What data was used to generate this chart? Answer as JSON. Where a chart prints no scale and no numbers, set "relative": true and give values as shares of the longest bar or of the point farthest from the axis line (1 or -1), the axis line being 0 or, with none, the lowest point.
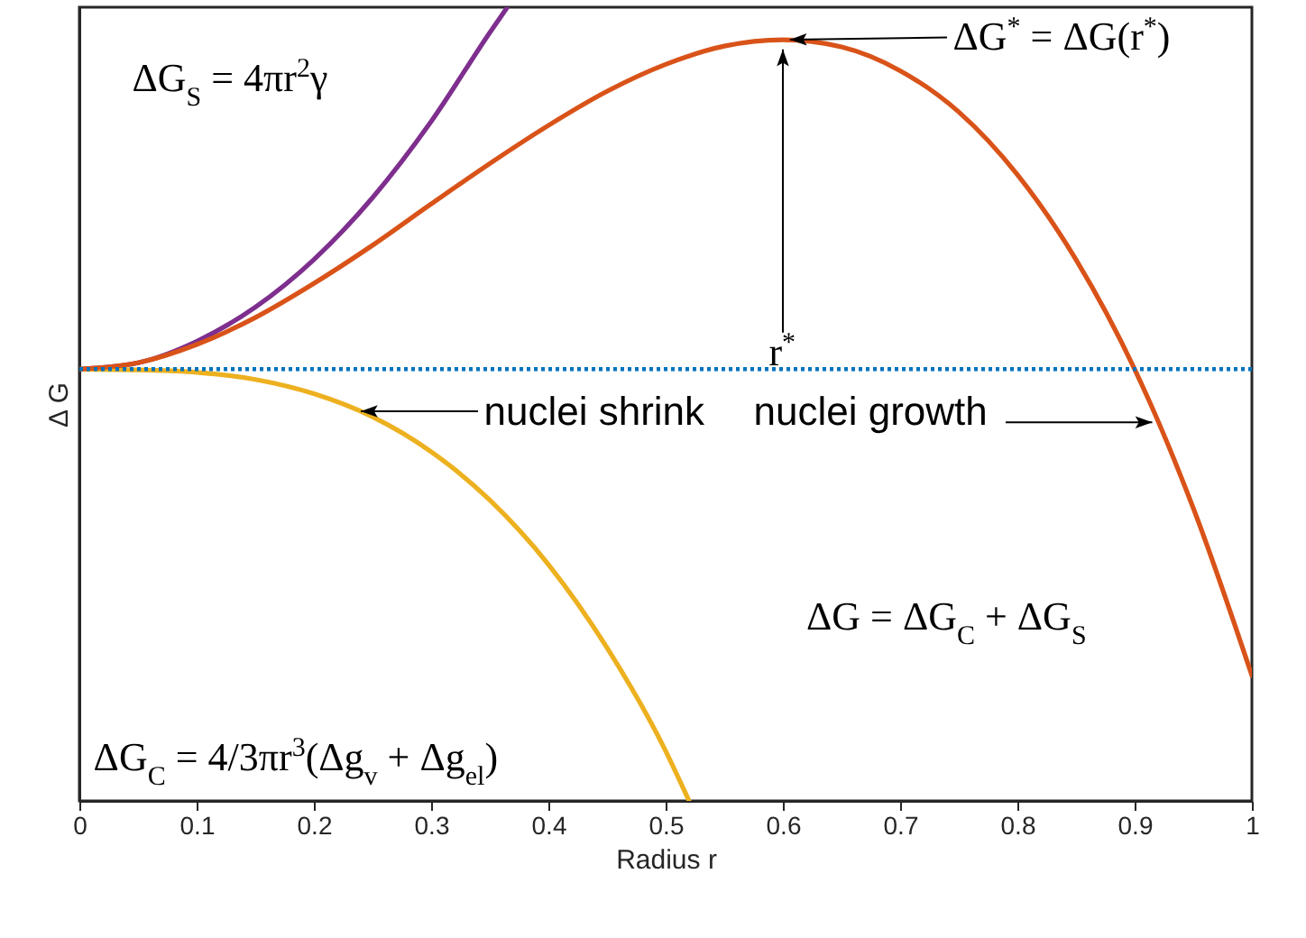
{
  "chart_data": {
    "type": "line",
    "relative": true,
    "xlabel": "Radius r",
    "ylabel": "Δ G",
    "xlim": [
      0,
      1
    ],
    "xticks": [
      0,
      0.1,
      0.2,
      0.3,
      0.4,
      0.5,
      0.6,
      0.7,
      0.8,
      0.9,
      1
    ],
    "series": [
      {
        "color": "#7e2f8e",
        "x": [
          0,
          0.05,
          0.1,
          0.15,
          0.2,
          0.25,
          0.3,
          0.35,
          0.365
        ],
        "values": [
          0.544,
          0.552,
          0.579,
          0.622,
          0.682,
          0.76,
          0.856,
          0.968,
          1
        ]
      },
      {
        "color": "#edb120",
        "x": [
          0,
          0.05,
          0.1,
          0.15,
          0.2,
          0.25,
          0.3,
          0.35,
          0.4,
          0.45,
          0.5,
          0.52
        ],
        "values": [
          0.544,
          0.543,
          0.54,
          0.531,
          0.513,
          0.484,
          0.44,
          0.379,
          0.298,
          0.193,
          0.063,
          0
        ]
      },
      {
        "color": "#d95319",
        "x": [
          0,
          0.05,
          0.1,
          0.15,
          0.2,
          0.25,
          0.3,
          0.35,
          0.4,
          0.45,
          0.5,
          0.55,
          0.6,
          0.65,
          0.7,
          0.75,
          0.8,
          0.85,
          0.9,
          0.95,
          1
        ],
        "values": [
          0.544,
          0.552,
          0.575,
          0.609,
          0.652,
          0.7,
          0.752,
          0.803,
          0.851,
          0.894,
          0.928,
          0.951,
          0.959,
          0.95,
          0.92,
          0.868,
          0.789,
          0.682,
          0.544,
          0.369,
          0.158
        ]
      }
    ],
    "ref_lines": [
      {
        "axis": "y",
        "value": 0.544,
        "color": "#0072bd",
        "line_style": "dotted"
      }
    ],
    "annotations": [
      "ΔG$_{S}$ = 4πr$^{2}$γ",
      {
        "text": "ΔG$^{*}$ = ΔG(r$^{*}$)",
        "x": 0.6,
        "y": 0.959
      },
      "r$^{*}$",
      {
        "text": "nuclei shrink",
        "x": 0.24,
        "y": 0.491
      },
      {
        "text": "nuclei growth",
        "x": 0.915,
        "y": 0.477
      },
      "ΔG = ΔG$_{C}$ + ΔG$_{S}$",
      "ΔG$_{C}$ = 4/3πr$^{3}$(Δg$_{v}$ + Δg$_{el}$)"
    ]
  }
}
